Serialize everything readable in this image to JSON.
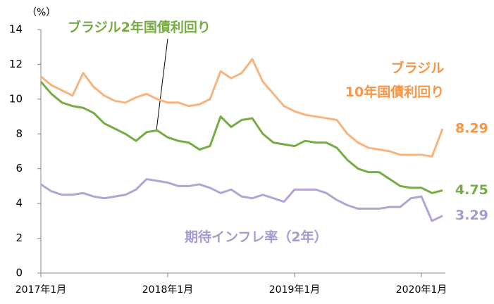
{
  "chart_data": {
    "type": "line",
    "y_label": "（%）",
    "categories": [
      "2017年1月",
      null,
      null,
      null,
      null,
      null,
      null,
      null,
      null,
      null,
      null,
      null,
      "2018年1月",
      null,
      null,
      null,
      null,
      null,
      null,
      null,
      null,
      null,
      null,
      null,
      "2019年1月",
      null,
      null,
      null,
      null,
      null,
      null,
      null,
      null,
      null,
      null,
      null,
      "2020年1月",
      null,
      null
    ],
    "series": [
      {
        "name": "ブラジル\n10年国債利回り",
        "color": "#f8b47e",
        "values": [
          11.3,
          10.8,
          10.5,
          10.2,
          11.5,
          10.7,
          10.2,
          9.9,
          9.8,
          10.1,
          10.3,
          10.0,
          9.8,
          9.8,
          9.6,
          9.7,
          10.0,
          11.6,
          11.2,
          11.5,
          12.3,
          11.0,
          10.3,
          9.6,
          9.3,
          9.1,
          9.0,
          8.9,
          8.8,
          8.0,
          7.5,
          7.2,
          7.1,
          7.0,
          6.8,
          6.8,
          6.8,
          6.7,
          8.29
        ]
      },
      {
        "name": "ブラジル2年国債利回り",
        "color": "#77ac45",
        "values": [
          11.0,
          10.3,
          9.8,
          9.6,
          9.5,
          9.2,
          8.6,
          8.3,
          8.0,
          7.6,
          8.1,
          8.2,
          7.8,
          7.6,
          7.5,
          7.1,
          7.3,
          9.0,
          8.4,
          8.8,
          8.9,
          8.0,
          7.5,
          7.4,
          7.3,
          7.6,
          7.5,
          7.5,
          7.2,
          6.5,
          6.0,
          5.8,
          5.8,
          5.4,
          5.0,
          4.9,
          4.9,
          4.6,
          4.75
        ]
      },
      {
        "name": "期待インフレ率（2年）",
        "color": "#b3a4d4",
        "values": [
          5.1,
          4.7,
          4.5,
          4.5,
          4.6,
          4.4,
          4.3,
          4.4,
          4.5,
          4.8,
          5.4,
          5.3,
          5.2,
          5.0,
          5.0,
          5.1,
          4.9,
          4.6,
          4.8,
          4.4,
          4.3,
          4.5,
          4.3,
          4.1,
          4.8,
          4.8,
          4.8,
          4.6,
          4.2,
          3.9,
          3.7,
          3.7,
          3.7,
          3.8,
          3.8,
          4.3,
          4.4,
          3.0,
          3.29
        ]
      }
    ],
    "ylim": [
      0,
      14
    ],
    "yticks": [
      0,
      2,
      4,
      6,
      8,
      10,
      12,
      14
    ]
  }
}
